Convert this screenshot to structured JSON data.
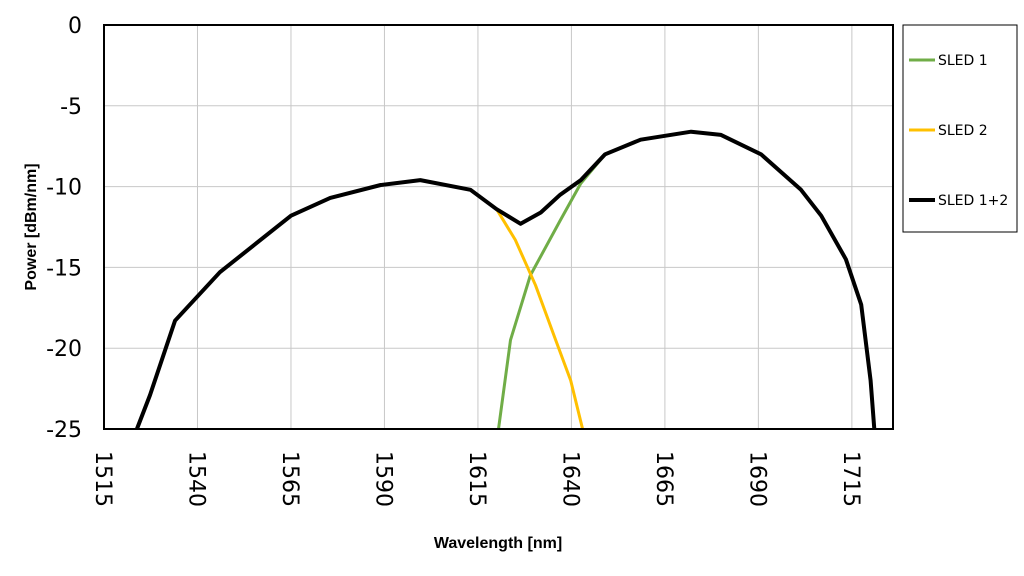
{
  "chart_data": {
    "type": "line",
    "title": "",
    "xlabel": "Wavelength [nm]",
    "ylabel": "Power [dBm/nm]",
    "xlim": [
      1515,
      1726
    ],
    "ylim": [
      -25,
      0
    ],
    "xticks": [
      1515,
      1540,
      1565,
      1590,
      1615,
      1640,
      1665,
      1690,
      1715
    ],
    "yticks": [
      0,
      -5,
      -10,
      -15,
      -20,
      -25
    ],
    "grid": true,
    "legend": "right",
    "series": [
      {
        "name": "SLED 1",
        "color": "#70ad47",
        "x": [
          1620.5,
          1623.7,
          1629,
          1637,
          1642.5,
          1649,
          1658.5,
          1672,
          1680,
          1690.7,
          1701.4,
          1706.8,
          1713.4,
          1717.5,
          1720,
          1721
        ],
        "y": [
          -25,
          -19.5,
          -15.5,
          -12.1,
          -9.8,
          -8.0,
          -7.1,
          -6.6,
          -6.8,
          -8.0,
          -10.2,
          -11.8,
          -14.5,
          -17.3,
          -22,
          -25
        ]
      },
      {
        "name": "SLED 2",
        "color": "#ffc000",
        "x": [
          1523.8,
          1527.3,
          1534,
          1546,
          1565,
          1575.5,
          1589,
          1599.6,
          1613,
          1620,
          1625,
          1630.4,
          1635.8,
          1639.8,
          1643
        ],
        "y": [
          -25,
          -22.9,
          -18.3,
          -15.3,
          -11.8,
          -10.7,
          -9.9,
          -9.6,
          -10.2,
          -11.4,
          -13.3,
          -16.1,
          -19.5,
          -22,
          -25
        ]
      },
      {
        "name": "SLED 1+2",
        "color": "#000000",
        "x": [
          1523.8,
          1527.3,
          1534,
          1546,
          1565,
          1575.5,
          1589,
          1599.6,
          1613,
          1620,
          1626.4,
          1631.8,
          1637,
          1642.5,
          1649,
          1658.5,
          1672,
          1680,
          1690.7,
          1701.4,
          1706.8,
          1713.4,
          1717.5,
          1720,
          1721
        ],
        "y": [
          -25,
          -22.9,
          -18.3,
          -15.3,
          -11.8,
          -10.7,
          -9.9,
          -9.6,
          -10.2,
          -11.4,
          -12.3,
          -11.6,
          -10.5,
          -9.6,
          -8.0,
          -7.1,
          -6.6,
          -6.8,
          -8.0,
          -10.2,
          -11.8,
          -14.5,
          -17.3,
          -22,
          -25
        ]
      }
    ]
  }
}
